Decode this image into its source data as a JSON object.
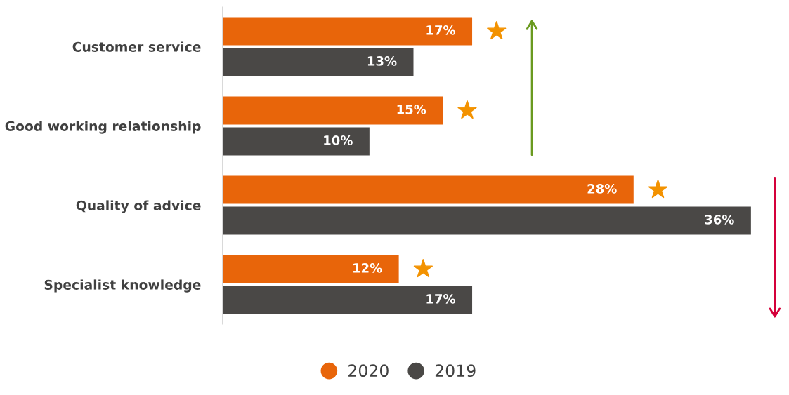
{
  "chart_data": {
    "type": "bar",
    "orientation": "horizontal",
    "categories": [
      "Customer service",
      "Good working relationship",
      "Quality of advice",
      "Specialist knowledge"
    ],
    "series": [
      {
        "name": "2020",
        "color": "#e8650a",
        "values": [
          17,
          15,
          28,
          12
        ],
        "value_labels": [
          "17%",
          "15%",
          "28%",
          "12%"
        ]
      },
      {
        "name": "2019",
        "color": "#4a4846",
        "values": [
          13,
          10,
          36,
          17
        ],
        "value_labels": [
          "13%",
          "10%",
          "36%",
          "17%"
        ]
      }
    ],
    "legend": "bottom",
    "grid": false
  }
}
